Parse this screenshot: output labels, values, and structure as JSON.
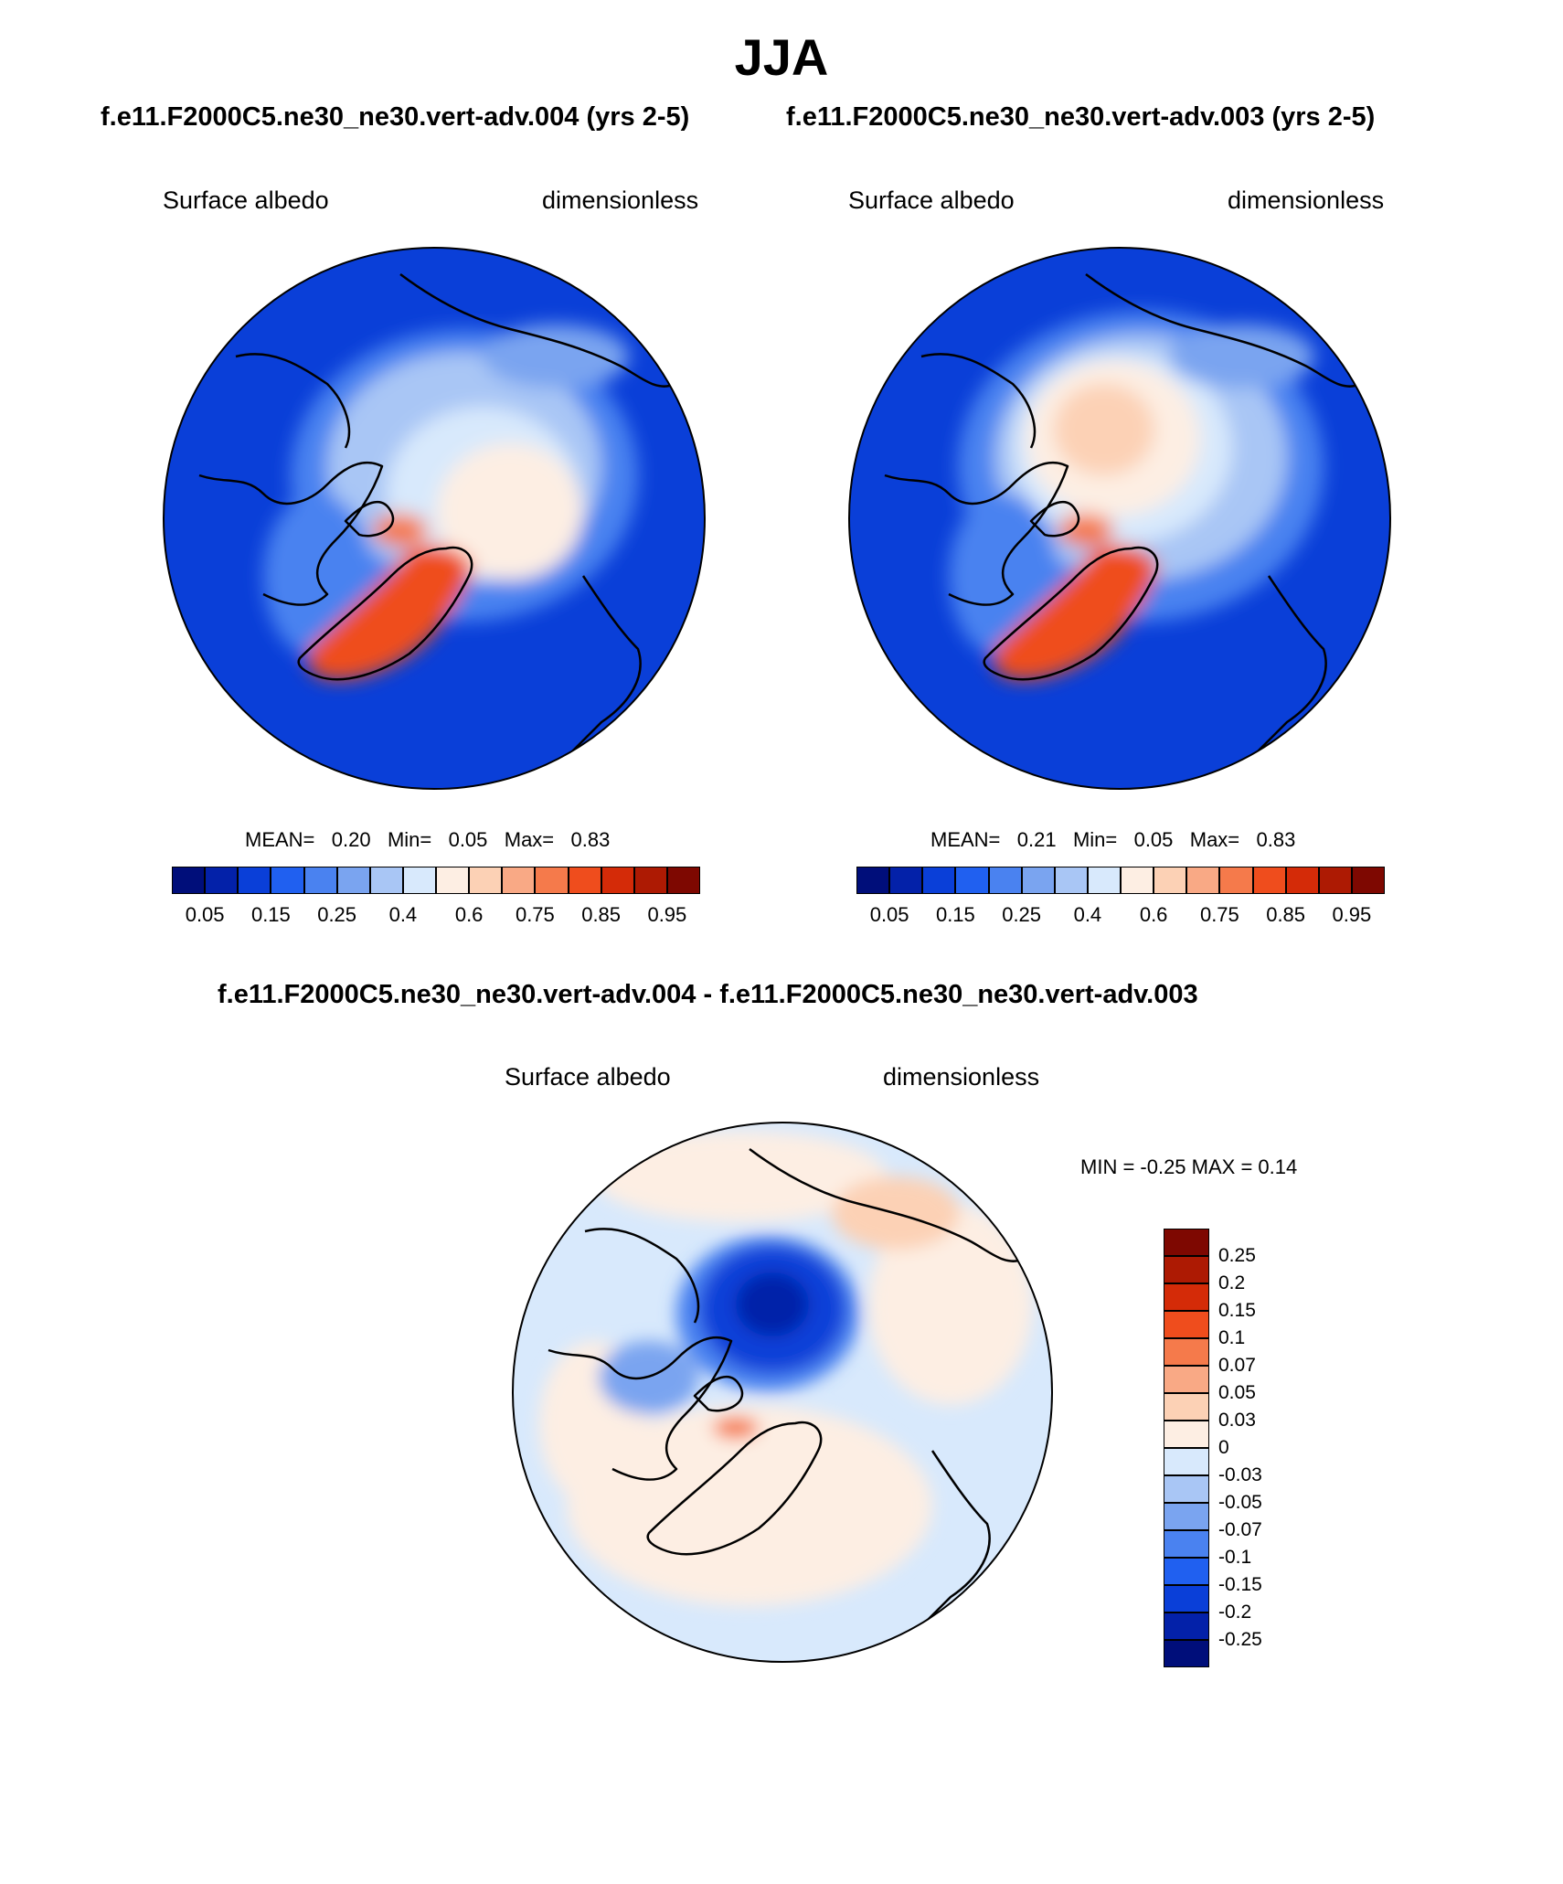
{
  "title": "JJA",
  "top_left": {
    "case": "f.e11.F2000C5.ne30_ne30.vert-adv.004 (yrs 2-5)",
    "variable": "Surface albedo",
    "units": "dimensionless",
    "stats": {
      "mean_label": "MEAN=",
      "mean": "0.20",
      "min_label": "Min=",
      "min": "0.05",
      "max_label": "Max=",
      "max": "0.83"
    }
  },
  "top_right": {
    "case": "f.e11.F2000C5.ne30_ne30.vert-adv.003 (yrs 2-5)",
    "variable": "Surface albedo",
    "units": "dimensionless",
    "stats": {
      "mean_label": "MEAN=",
      "mean": "0.21",
      "min_label": "Min=",
      "min": "0.05",
      "max_label": "Max=",
      "max": "0.83"
    }
  },
  "diff": {
    "case": "f.e11.F2000C5.ne30_ne30.vert-adv.004 - f.e11.F2000C5.ne30_ne30.vert-adv.003",
    "variable": "Surface albedo",
    "units": "dimensionless",
    "minmax": "MIN =  -0.25 MAX =   0.14"
  },
  "abs_colorbar": {
    "colors": [
      "#000e7a",
      "#0321a9",
      "#0a3fd8",
      "#2060f0",
      "#4a82f0",
      "#7aa4f0",
      "#a9c6f5",
      "#d8e9fc",
      "#fdeee3",
      "#fcd1b5",
      "#f9a985",
      "#f57a4b",
      "#ef4d1d",
      "#d42b08",
      "#ad1a03",
      "#7e0801"
    ],
    "tick_labels": [
      "0.05",
      "0.15",
      "0.25",
      "0.4",
      "0.6",
      "0.75",
      "0.85",
      "0.95"
    ]
  },
  "diff_colorbar": {
    "colors": [
      "#000e7a",
      "#0321a9",
      "#0a3fd8",
      "#2060f0",
      "#4a82f0",
      "#7aa4f0",
      "#a9c6f5",
      "#d8e9fc",
      "#fdeee3",
      "#fcd1b5",
      "#f9a985",
      "#f57a4b",
      "#ef4d1d",
      "#d42b08",
      "#ad1a03",
      "#7e0801"
    ],
    "tick_labels": [
      "0.25",
      "0.2",
      "0.15",
      "0.1",
      "0.07",
      "0.05",
      "0.03",
      "0",
      "-0.03",
      "-0.05",
      "-0.07",
      "-0.1",
      "-0.15",
      "-0.2",
      "-0.25"
    ]
  },
  "chart_data": [
    {
      "type": "heatmap",
      "projection": "north polar stereographic",
      "title": "Surface albedo",
      "subtitle": "f.e11.F2000C5.ne30_ne30.vert-adv.004 (yrs 2-5)",
      "units": "dimensionless",
      "mean": 0.2,
      "min": 0.05,
      "max": 0.83,
      "levels": [
        0.05,
        0.1,
        0.15,
        0.2,
        0.25,
        0.3,
        0.4,
        0.5,
        0.6,
        0.65,
        0.75,
        0.8,
        0.85,
        0.9,
        0.95
      ]
    },
    {
      "type": "heatmap",
      "projection": "north polar stereographic",
      "title": "Surface albedo",
      "subtitle": "f.e11.F2000C5.ne30_ne30.vert-adv.003 (yrs 2-5)",
      "units": "dimensionless",
      "mean": 0.21,
      "min": 0.05,
      "max": 0.83,
      "levels": [
        0.05,
        0.1,
        0.15,
        0.2,
        0.25,
        0.3,
        0.4,
        0.5,
        0.6,
        0.65,
        0.75,
        0.8,
        0.85,
        0.9,
        0.95
      ]
    },
    {
      "type": "heatmap",
      "projection": "north polar stereographic",
      "title": "Surface albedo",
      "subtitle": "f.e11.F2000C5.ne30_ne30.vert-adv.004 - f.e11.F2000C5.ne30_ne30.vert-adv.003",
      "units": "dimensionless",
      "min": -0.25,
      "max": 0.14,
      "levels": [
        -0.25,
        -0.2,
        -0.15,
        -0.1,
        -0.07,
        -0.05,
        -0.03,
        0,
        0.03,
        0.05,
        0.07,
        0.1,
        0.15,
        0.2,
        0.25
      ]
    }
  ]
}
